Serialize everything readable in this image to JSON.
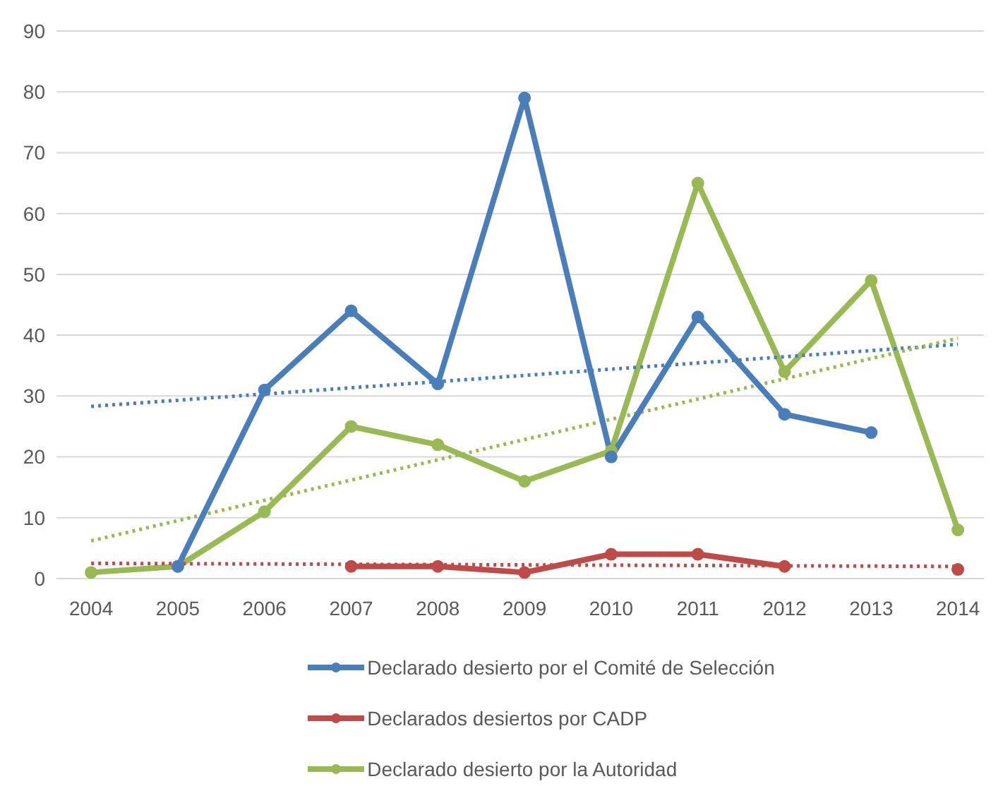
{
  "chart_data": {
    "type": "line",
    "xlim": [
      2003.6,
      2014.3
    ],
    "xticks": [
      2004,
      2005,
      2006,
      2007,
      2008,
      2009,
      2010,
      2011,
      2012,
      2013,
      2014
    ],
    "ylim": [
      0,
      90
    ],
    "yticks": [
      0,
      10,
      20,
      30,
      40,
      50,
      60,
      70,
      80,
      90
    ],
    "grid": "y",
    "legend": "bottom",
    "marker": "circle",
    "series": [
      {
        "name": "Declarado desierto por el Comité de Selección",
        "color": "#4a7ebb",
        "x": [
          2005,
          2006,
          2007,
          2008,
          2009,
          2010,
          2011,
          2012,
          2013
        ],
        "values": [
          2,
          31,
          44,
          32,
          79,
          20,
          43,
          27,
          24
        ]
      },
      {
        "name": "Declarados desiertos por CADP",
        "color": "#be4b48",
        "x": [
          2007,
          2008,
          2009,
          2010,
          2011,
          2012,
          2013,
          2014
        ],
        "values": [
          2,
          2,
          1,
          4,
          4,
          2,
          null,
          1.5
        ]
      },
      {
        "name": "Declarado desierto por la Autoridad",
        "color": "#98b954",
        "x": [
          2004,
          2005,
          2006,
          2007,
          2008,
          2009,
          2010,
          2011,
          2012,
          2013,
          2014
        ],
        "values": [
          1,
          2,
          11,
          25,
          22,
          16,
          21,
          65,
          34,
          49,
          8
        ]
      },
      {
        "color": "#4a7ebb",
        "x": [
          2004,
          2014
        ],
        "values": [
          28.3,
          38.5
        ],
        "line_style": "dotted",
        "marker": "none"
      },
      {
        "color": "#be4b48",
        "x": [
          2004,
          2014
        ],
        "values": [
          2.5,
          2
        ],
        "line_style": "dotted",
        "marker": "none"
      },
      {
        "color": "#98b954",
        "x": [
          2004,
          2014
        ],
        "values": [
          6.2,
          39.5
        ],
        "line_style": "dotted",
        "marker": "none"
      }
    ]
  }
}
